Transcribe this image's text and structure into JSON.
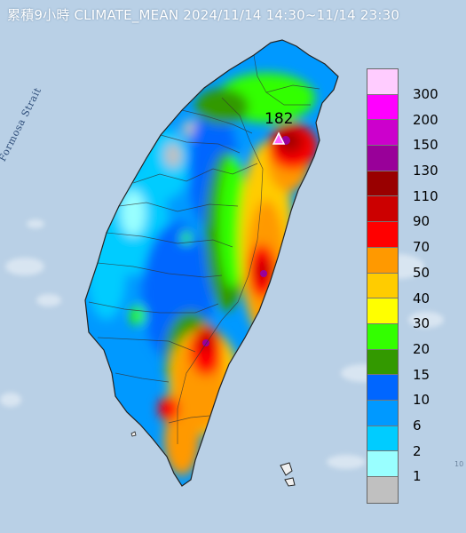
{
  "title": "累積9小時 CLIMATE_MEAN 2024/11/14 14:30~11/14 23:30",
  "strait_label": "Formosa Strait",
  "peak": {
    "value": "182",
    "marker": "triangle-marker"
  },
  "legend": {
    "colors": [
      "#ffccff",
      "#ff00ff",
      "#cc00cc",
      "#990099",
      "#990000",
      "#cc0000",
      "#ff0000",
      "#ff9900",
      "#ffcc00",
      "#ffff00",
      "#33ff00",
      "#339900",
      "#0066ff",
      "#0099ff",
      "#00ccff",
      "#99ffff",
      "#c0c0c0"
    ],
    "labels": [
      "300",
      "200",
      "150",
      "130",
      "110",
      "90",
      "70",
      "50",
      "40",
      "30",
      "20",
      "15",
      "10",
      "6",
      "2",
      "1"
    ]
  },
  "edge_text": "10"
}
